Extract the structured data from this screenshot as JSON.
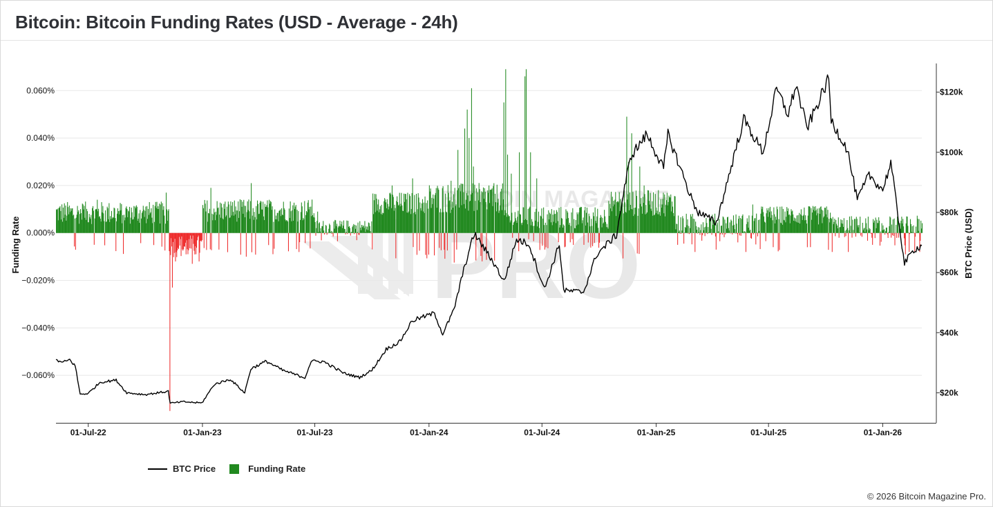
{
  "header": {
    "title": "Bitcoin: Bitcoin Funding Rates (USD - Average - 24h)"
  },
  "watermark": {
    "text_top": "BITCOIN MAGAZINE",
    "text_main": "PRO"
  },
  "legend": {
    "price_label": "BTC Price",
    "funding_label": "Funding Rate"
  },
  "footer": {
    "copyright": "© 2026 Bitcoin Magazine Pro."
  },
  "colors": {
    "price": "#000000",
    "funding_positive": "#21891f",
    "funding_negative": "#ee2b2b",
    "grid": "#e8e8e8"
  },
  "chart_data": {
    "type": "bar+line",
    "title": "Bitcoin: Bitcoin Funding Rates (USD - Average - 24h)",
    "x_range": [
      "2022-05-10",
      "2026-03-05"
    ],
    "x_ticks": [
      "01-Jul-22",
      "01-Jan-23",
      "01-Jul-23",
      "01-Jan-24",
      "01-Jul-24",
      "01-Jan-25",
      "01-Jul-25",
      "01-Jan-26"
    ],
    "y_left": {
      "label": "Funding Rate",
      "unit": "%",
      "ticks": [
        "0.060%",
        "0.040%",
        "0.020%",
        "0.000%",
        "-0.020%",
        "-0.040%",
        "-0.060%"
      ],
      "range": [
        -0.08,
        0.072
      ]
    },
    "y_right": {
      "label": "BTC Price (USD)",
      "ticks": [
        "$120k",
        "$100k",
        "$80k",
        "$60k",
        "$40k",
        "$20k"
      ],
      "range": [
        10000,
        130000
      ]
    },
    "grid": true,
    "legend_position": "bottom-left",
    "series": [
      {
        "name": "BTC Price",
        "kind": "line",
        "points": [
          [
            "2022-05-10",
            31000
          ],
          [
            "2022-05-20",
            30000
          ],
          [
            "2022-06-01",
            31000
          ],
          [
            "2022-06-10",
            29000
          ],
          [
            "2022-06-18",
            19500
          ],
          [
            "2022-07-01",
            19800
          ],
          [
            "2022-07-20",
            23500
          ],
          [
            "2022-08-15",
            24200
          ],
          [
            "2022-09-01",
            20000
          ],
          [
            "2022-10-01",
            19400
          ],
          [
            "2022-11-07",
            20500
          ],
          [
            "2022-11-10",
            16500
          ],
          [
            "2022-12-01",
            17000
          ],
          [
            "2022-12-31",
            16600
          ],
          [
            "2023-01-20",
            22800
          ],
          [
            "2023-02-15",
            24500
          ],
          [
            "2023-03-10",
            20000
          ],
          [
            "2023-03-20",
            28000
          ],
          [
            "2023-04-14",
            30500
          ],
          [
            "2023-05-10",
            27500
          ],
          [
            "2023-06-15",
            25000
          ],
          [
            "2023-06-25",
            30500
          ],
          [
            "2023-07-15",
            30400
          ],
          [
            "2023-08-17",
            26500
          ],
          [
            "2023-09-11",
            25100
          ],
          [
            "2023-10-01",
            27500
          ],
          [
            "2023-10-24",
            34500
          ],
          [
            "2023-11-15",
            37000
          ],
          [
            "2023-12-05",
            44000
          ],
          [
            "2024-01-10",
            46500
          ],
          [
            "2024-01-23",
            39500
          ],
          [
            "2024-02-10",
            47500
          ],
          [
            "2024-02-28",
            62500
          ],
          [
            "2024-03-14",
            73000
          ],
          [
            "2024-04-15",
            63000
          ],
          [
            "2024-05-01",
            57000
          ],
          [
            "2024-05-21",
            71000
          ],
          [
            "2024-06-10",
            69500
          ],
          [
            "2024-07-05",
            54500
          ],
          [
            "2024-07-29",
            69500
          ],
          [
            "2024-08-05",
            54000
          ],
          [
            "2024-09-06",
            53500
          ],
          [
            "2024-09-27",
            66000
          ],
          [
            "2024-10-29",
            72500
          ],
          [
            "2024-11-13",
            90500
          ],
          [
            "2024-11-22",
            99000
          ],
          [
            "2024-12-17",
            106000
          ],
          [
            "2025-01-13",
            94500
          ],
          [
            "2025-01-20",
            106000
          ],
          [
            "2025-02-28",
            84000
          ],
          [
            "2025-03-10",
            80000
          ],
          [
            "2025-04-08",
            76500
          ],
          [
            "2025-05-22",
            111000
          ],
          [
            "2025-06-22",
            100000
          ],
          [
            "2025-07-14",
            121000
          ],
          [
            "2025-08-02",
            112500
          ],
          [
            "2025-08-14",
            122500
          ],
          [
            "2025-09-01",
            108000
          ],
          [
            "2025-10-06",
            124500
          ],
          [
            "2025-10-10",
            110500
          ],
          [
            "2025-11-05",
            101000
          ],
          [
            "2025-11-21",
            84000
          ],
          [
            "2025-12-10",
            92500
          ],
          [
            "2026-01-01",
            87500
          ],
          [
            "2026-01-14",
            96500
          ],
          [
            "2026-02-05",
            63000
          ],
          [
            "2026-02-20",
            67500
          ],
          [
            "2026-03-05",
            69000
          ]
        ]
      },
      {
        "name": "Funding Rate",
        "kind": "bar",
        "unit": "%",
        "segments": [
          [
            "2022-05-10",
            "2022-11-07",
            0.008,
            0.006
          ],
          [
            "2022-11-08",
            "2022-12-31",
            -0.006,
            0.006
          ],
          [
            "2023-01-01",
            "2023-06-30",
            0.009,
            0.006
          ],
          [
            "2023-07-01",
            "2023-09-30",
            0.002,
            0.004
          ],
          [
            "2023-10-01",
            "2023-12-31",
            0.012,
            0.006
          ],
          [
            "2024-01-01",
            "2024-04-30",
            0.014,
            0.008
          ],
          [
            "2024-05-01",
            "2024-10-15",
            0.006,
            0.006
          ],
          [
            "2024-10-16",
            "2025-01-31",
            0.012,
            0.007
          ],
          [
            "2025-02-01",
            "2025-06-15",
            0.003,
            0.006
          ],
          [
            "2025-06-16",
            "2025-10-10",
            0.007,
            0.005
          ],
          [
            "2025-10-11",
            "2026-03-05",
            0.002,
            0.006
          ]
        ],
        "peaks": [
          [
            "2022-06-22",
            0.012
          ],
          [
            "2022-07-15",
            0.014
          ],
          [
            "2022-09-05",
            0.011
          ],
          [
            "2022-10-25",
            0.012
          ],
          [
            "2022-11-03",
            0.017
          ],
          [
            "2022-11-09",
            -0.075
          ],
          [
            "2022-11-13",
            -0.023
          ],
          [
            "2022-11-18",
            -0.012
          ],
          [
            "2022-12-05",
            -0.009
          ],
          [
            "2022-12-15",
            -0.013
          ],
          [
            "2022-12-26",
            -0.012
          ],
          [
            "2023-01-14",
            0.019
          ],
          [
            "2023-02-18",
            0.013
          ],
          [
            "2023-03-12",
            -0.01
          ],
          [
            "2023-03-20",
            0.021
          ],
          [
            "2023-04-12",
            0.011
          ],
          [
            "2023-06-22",
            0.011
          ],
          [
            "2023-07-05",
            0.009
          ],
          [
            "2023-11-02",
            0.02
          ],
          [
            "2023-12-05",
            0.023
          ],
          [
            "2023-12-08",
            0.016
          ],
          [
            "2024-01-10",
            0.016
          ],
          [
            "2024-02-05",
            0.022
          ],
          [
            "2024-02-16",
            0.035
          ],
          [
            "2024-02-27",
            0.044
          ],
          [
            "2024-03-02",
            0.052
          ],
          [
            "2024-03-05",
            0.04
          ],
          [
            "2024-03-09",
            0.061
          ],
          [
            "2024-03-12",
            0.028
          ],
          [
            "2024-03-23",
            0.013
          ],
          [
            "2024-04-06",
            0.02
          ],
          [
            "2024-04-30",
            0.055
          ],
          [
            "2024-05-03",
            0.069
          ],
          [
            "2024-05-06",
            0.033
          ],
          [
            "2024-05-12",
            0.025
          ],
          [
            "2024-05-25",
            0.034
          ],
          [
            "2024-06-03",
            0.066
          ],
          [
            "2024-06-05",
            0.069
          ],
          [
            "2024-06-12",
            0.034
          ],
          [
            "2024-06-22",
            0.023
          ],
          [
            "2024-07-05",
            -0.007
          ],
          [
            "2024-08-06",
            -0.006
          ],
          [
            "2024-09-06",
            -0.005
          ],
          [
            "2024-10-25",
            0.012
          ],
          [
            "2024-11-10",
            0.018
          ],
          [
            "2024-11-14",
            0.049
          ],
          [
            "2024-11-17",
            0.03
          ],
          [
            "2024-11-22",
            0.042
          ],
          [
            "2024-12-05",
            0.028
          ],
          [
            "2024-12-12",
            0.02
          ],
          [
            "2025-01-10",
            0.012
          ],
          [
            "2025-02-04",
            -0.005
          ],
          [
            "2025-03-04",
            -0.008
          ],
          [
            "2025-04-07",
            -0.007
          ],
          [
            "2025-05-25",
            -0.008
          ],
          [
            "2025-06-05",
            0.012
          ],
          [
            "2025-07-15",
            0.01
          ],
          [
            "2025-09-01",
            -0.006
          ],
          [
            "2025-10-11",
            -0.008
          ],
          [
            "2025-11-06",
            -0.008
          ],
          [
            "2025-12-15",
            -0.005
          ],
          [
            "2026-02-06",
            -0.009
          ],
          [
            "2026-02-12",
            -0.008
          ],
          [
            "2026-02-21",
            -0.008
          ],
          [
            "2026-03-01",
            -0.008
          ]
        ]
      }
    ]
  }
}
